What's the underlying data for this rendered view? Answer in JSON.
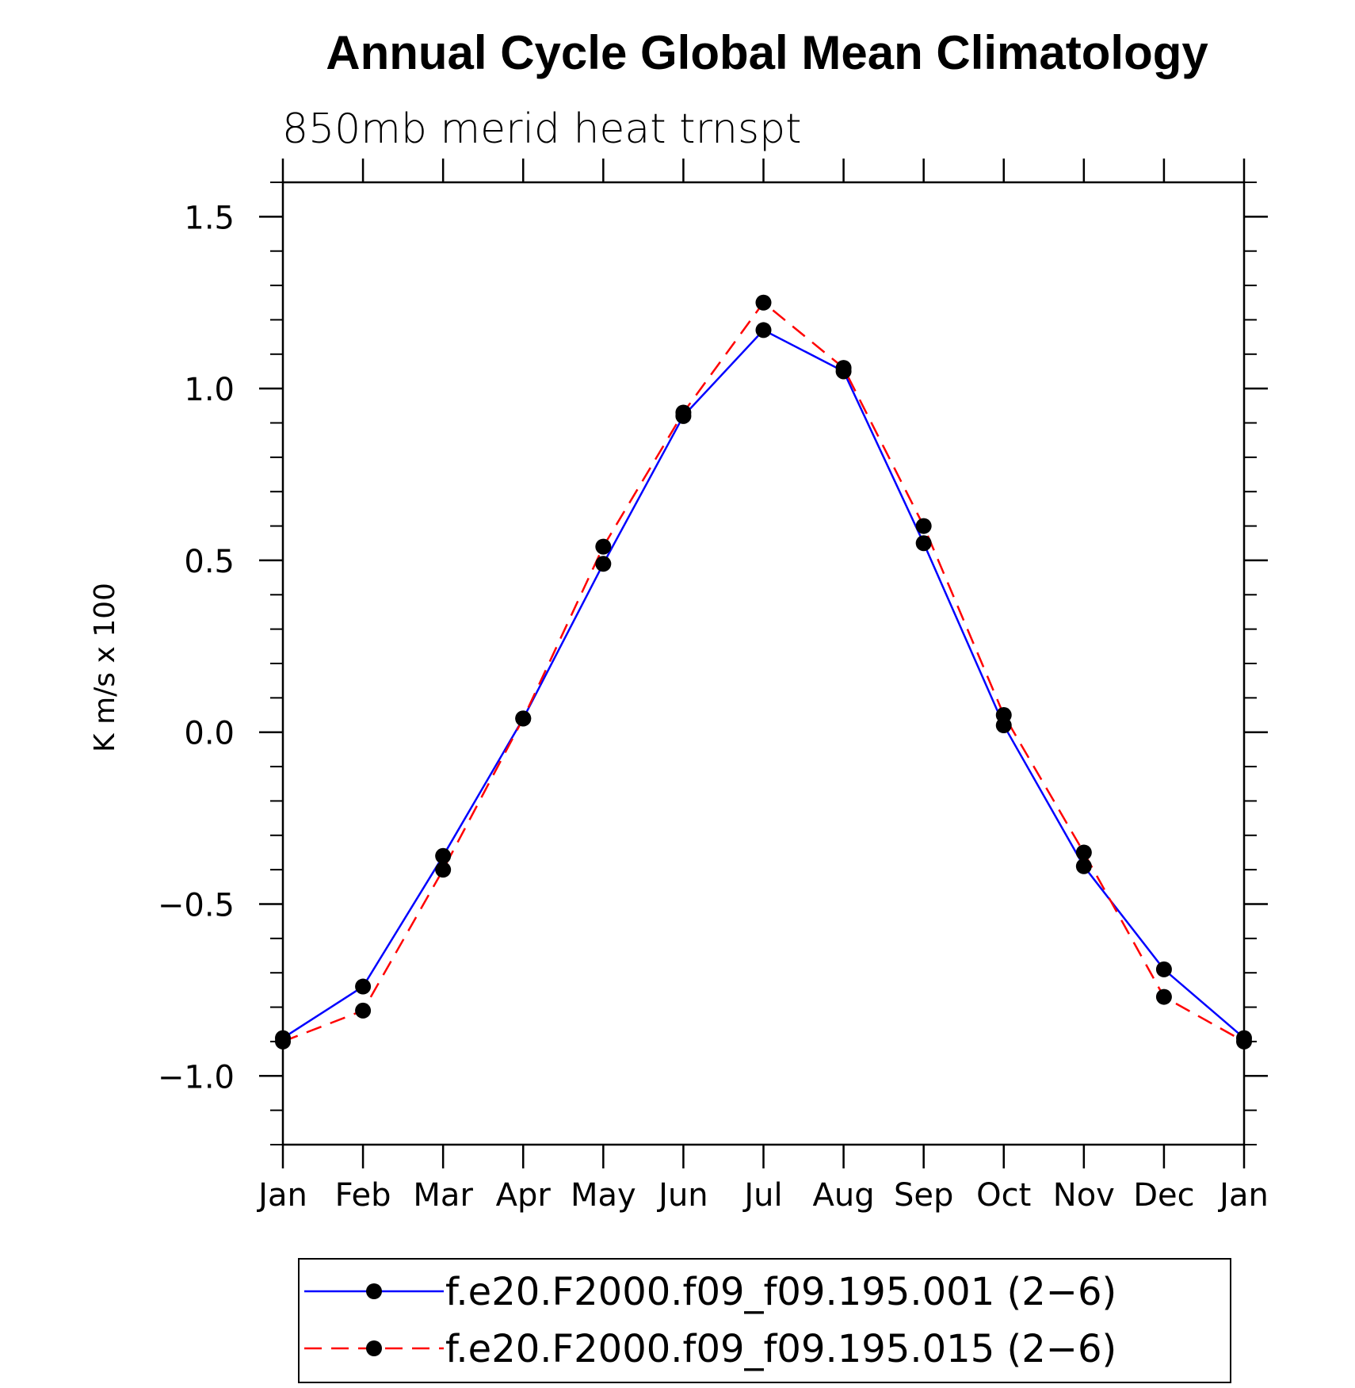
{
  "chart_data": {
    "type": "line",
    "title": "Annual Cycle Global Mean Climatology",
    "subtitle": "850mb merid heat trnspt",
    "xlabel": "",
    "ylabel": "K m/s x 100",
    "categories": [
      "Jan",
      "Feb",
      "Mar",
      "Apr",
      "May",
      "Jun",
      "Jul",
      "Aug",
      "Sep",
      "Oct",
      "Nov",
      "Dec",
      "Jan"
    ],
    "ylim": [
      -1.2,
      1.6
    ],
    "yticks": [
      -1.0,
      -0.5,
      0.0,
      0.5,
      1.0,
      1.5
    ],
    "ytick_labels": [
      "−1.0",
      "−0.5",
      "0.0",
      "0.5",
      "1.0",
      "1.5"
    ],
    "yminor_step": 0.1,
    "grid": false,
    "legend_position": "bottom",
    "series": [
      {
        "name": "f.e20.F2000.f09_f09.195.001 (2−6)",
        "color": "#0000ff",
        "line_style": "solid",
        "marker": "filled-circle",
        "values": [
          -0.89,
          -0.74,
          -0.36,
          0.04,
          0.49,
          0.92,
          1.17,
          1.05,
          0.55,
          0.02,
          -0.39,
          -0.69,
          -0.89
        ]
      },
      {
        "name": "f.e20.F2000.f09_f09.195.015 (2−6)",
        "color": "#ff0000",
        "line_style": "dashed",
        "marker": "filled-circle",
        "values": [
          -0.9,
          -0.81,
          -0.4,
          0.04,
          0.54,
          0.93,
          1.25,
          1.06,
          0.6,
          0.05,
          -0.35,
          -0.77,
          -0.9
        ]
      }
    ]
  }
}
